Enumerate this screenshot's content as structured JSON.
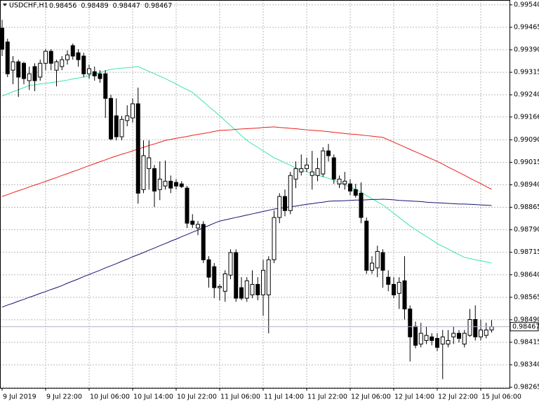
{
  "chart_data": {
    "type": "candlestick",
    "title": "USDCHF,H1",
    "categories": [
      "9 Jul 2019",
      null,
      null,
      null,
      null,
      null,
      null,
      null,
      "9 Jul 22:00",
      null,
      null,
      null,
      null,
      null,
      null,
      null,
      "10 Jul 06:00",
      null,
      null,
      null,
      null,
      null,
      null,
      null,
      "10 Jul 14:00",
      null,
      null,
      null,
      null,
      null,
      null,
      null,
      "10 Jul 22:00",
      null,
      null,
      null,
      null,
      null,
      null,
      null,
      "11 Jul 06:00",
      null,
      null,
      null,
      null,
      null,
      null,
      null,
      "11 Jul 14:00",
      null,
      null,
      null,
      null,
      null,
      null,
      null,
      "11 Jul 22:00",
      null,
      null,
      null,
      null,
      null,
      null,
      null,
      "12 Jul 06:00",
      null,
      null,
      null,
      null,
      null,
      null,
      null,
      "12 Jul 14:00",
      null,
      null,
      null,
      null,
      null,
      null,
      null,
      "12 Jul 22:00",
      null,
      null,
      null,
      null,
      null,
      null,
      null,
      "15 Jul 06:00",
      null,
      null
    ],
    "open": [
      0.99462,
      0.99416,
      0.99322,
      0.9935,
      0.99345,
      0.99287,
      0.99334,
      0.99299,
      0.99345,
      0.99385,
      0.99322,
      0.99334,
      0.99357,
      0.99404,
      0.9938,
      0.99369,
      0.9931,
      0.99317,
      0.9931,
      0.9931,
      0.99228,
      0.9917,
      0.991,
      0.99154,
      0.99163,
      0.9921,
      0.98924,
      0.98994,
      0.98994,
      0.98924,
      0.98936,
      0.98952,
      0.98948,
      0.98943,
      0.98929,
      0.98819,
      0.98796,
      0.98808,
      0.9869,
      0.98667,
      0.98597,
      0.98585,
      0.98639,
      0.98714,
      0.98597,
      0.98562,
      0.98573,
      0.98608,
      0.98573,
      0.98573,
      0.9869,
      0.98831,
      0.98901,
      0.98854,
      0.98959,
      0.98983,
      0.98994,
      0.98971,
      0.98971,
      0.98976,
      0.99053,
      0.9903,
      0.98943,
      0.98943,
      0.98943,
      0.98924,
      0.98912,
      0.98819,
      0.98655,
      0.98663,
      0.98714,
      0.98632,
      0.98608,
      0.98578,
      0.9862,
      0.98526,
      0.98468,
      0.98409,
      0.98421,
      0.98433,
      0.98428,
      0.98409,
      0.98409,
      0.98433,
      0.98445,
      0.98409,
      0.98438,
      0.98491,
      0.98433,
      0.98438,
      0.98456
    ],
    "high": [
      0.9949,
      0.99427,
      0.99369,
      0.99357,
      0.9935,
      0.99334,
      0.99345,
      0.99357,
      0.99392,
      0.99392,
      0.99357,
      0.99369,
      0.99388,
      0.99411,
      0.99392,
      0.9938,
      0.99341,
      0.99334,
      0.99322,
      0.99322,
      0.9924,
      0.99228,
      0.9917,
      0.99205,
      0.99228,
      0.99264,
      0.99088,
      0.99088,
      0.99006,
      0.99018,
      0.99021,
      0.98971,
      0.98959,
      0.98952,
      0.98936,
      0.98842,
      0.98819,
      0.98819,
      0.98702,
      0.98679,
      0.98608,
      0.98655,
      0.98725,
      0.98725,
      0.98632,
      0.98632,
      0.98655,
      0.98632,
      0.9869,
      0.98702,
      0.98854,
      0.98912,
      0.98924,
      0.98983,
      0.99018,
      0.99041,
      0.9903,
      0.99053,
      0.9903,
      0.99065,
      0.99076,
      0.99041,
      0.98971,
      0.98983,
      0.98959,
      0.98943,
      0.98948,
      0.98831,
      0.98702,
      0.98737,
      0.98725,
      0.98655,
      0.98632,
      0.98632,
      0.98702,
      0.98538,
      0.98484,
      0.9848,
      0.98468,
      0.98445,
      0.98445,
      0.98456,
      0.98456,
      0.98468,
      0.98456,
      0.98456,
      0.98526,
      0.98538,
      0.98491,
      0.9848,
      0.98489
    ],
    "low": [
      0.99369,
      0.99299,
      0.99275,
      0.99233,
      0.99275,
      0.99256,
      0.99252,
      0.99287,
      0.99322,
      0.99322,
      0.99268,
      0.99322,
      0.99341,
      0.99357,
      0.99334,
      0.99299,
      0.99294,
      0.99287,
      0.9928,
      0.99163,
      0.99088,
      0.99088,
      0.99088,
      0.99135,
      0.99147,
      0.98877,
      0.98912,
      0.98924,
      0.98866,
      0.98889,
      0.98924,
      0.98912,
      0.98924,
      0.98929,
      0.98796,
      0.98796,
      0.98772,
      0.98679,
      0.98597,
      0.98562,
      0.98555,
      0.9855,
      0.98625,
      0.9855,
      0.98555,
      0.9855,
      0.98562,
      0.98555,
      0.98503,
      0.98445,
      0.98679,
      0.98812,
      0.98835,
      0.98842,
      0.98929,
      0.98971,
      0.98983,
      0.98924,
      0.98952,
      0.98966,
      0.99018,
      0.98943,
      0.98929,
      0.98924,
      0.98905,
      0.98897,
      0.98812,
      0.98643,
      0.98643,
      0.98632,
      0.98597,
      0.98585,
      0.98562,
      0.98526,
      0.98491,
      0.98351,
      0.98395,
      0.98398,
      0.98409,
      0.98405,
      0.98386,
      0.98292,
      0.98398,
      0.98409,
      0.98414,
      0.98398,
      0.98433,
      0.98421,
      0.98421,
      0.98428,
      0.98447
    ],
    "close": [
      0.99392,
      0.9931,
      0.9935,
      0.99299,
      0.99294,
      0.9931,
      0.99287,
      0.99345,
      0.99385,
      0.99345,
      0.9935,
      0.99357,
      0.99373,
      0.99369,
      0.99357,
      0.9931,
      0.99327,
      0.99303,
      0.99294,
      0.99228,
      0.99093,
      0.991,
      0.99158,
      0.9917,
      0.9921,
      0.98912,
      0.99037,
      0.9903,
      0.98919,
      0.98959,
      0.98952,
      0.98929,
      0.98936,
      0.98934,
      0.98812,
      0.98808,
      0.98808,
      0.9869,
      0.98632,
      0.98597,
      0.98601,
      0.98643,
      0.98714,
      0.98562,
      0.98562,
      0.9862,
      0.98608,
      0.98573,
      0.98655,
      0.9869,
      0.98831,
      0.98901,
      0.98854,
      0.98971,
      0.98994,
      0.98994,
      0.99006,
      0.98983,
      0.98994,
      0.99053,
      0.99037,
      0.98959,
      0.98959,
      0.98952,
      0.98919,
      0.98905,
      0.98831,
      0.98655,
      0.98679,
      0.98718,
      0.98655,
      0.98608,
      0.98573,
      0.98615,
      0.98526,
      0.98433,
      0.98405,
      0.98445,
      0.98438,
      0.98421,
      0.98398,
      0.98433,
      0.98421,
      0.98445,
      0.98428,
      0.98445,
      0.98491,
      0.98433,
      0.98456,
      0.98456,
      0.98467
    ],
    "up_color": "#ffffff",
    "down_color": "#000000",
    "outline_color": "#000000",
    "overlays": [
      {
        "color": "#3ee6a6",
        "values": [
          0.99236,
          0.99243,
          0.9925,
          0.99257,
          0.99264,
          0.99271,
          0.99273,
          0.99276,
          0.99278,
          0.99281,
          0.99283,
          0.99286,
          0.99289,
          0.99293,
          0.99296,
          0.99299,
          0.99304,
          0.99309,
          0.99315,
          0.9932,
          0.99325,
          0.99327,
          0.99329,
          0.9933,
          0.99332,
          0.99334,
          0.99326,
          0.99318,
          0.9931,
          0.99302,
          0.99294,
          0.99285,
          0.99276,
          0.99266,
          0.99257,
          0.99248,
          0.99232,
          0.99217,
          0.99201,
          0.99186,
          0.9917,
          0.99154,
          0.99137,
          0.99121,
          0.99104,
          0.99088,
          0.99076,
          0.99065,
          0.99053,
          0.99042,
          0.9903,
          0.99022,
          0.99013,
          0.99005,
          0.98996,
          0.98988,
          0.98983,
          0.98978,
          0.98972,
          0.98967,
          0.98962,
          0.98955,
          0.98947,
          0.9894,
          0.98932,
          0.98925,
          0.98915,
          0.98904,
          0.98894,
          0.98883,
          0.98873,
          0.98859,
          0.98845,
          0.98831,
          0.98817,
          0.98803,
          0.98791,
          0.98779,
          0.98768,
          0.98756,
          0.98744,
          0.98735,
          0.98726,
          0.98716,
          0.98707,
          0.98698,
          0.98694,
          0.9869,
          0.98687,
          0.98683,
          0.98679
        ]
      },
      {
        "color": "#e8201c",
        "values": [
          0.98901,
          0.98907,
          0.98914,
          0.9892,
          0.98926,
          0.98933,
          0.98939,
          0.98945,
          0.98951,
          0.98958,
          0.98964,
          0.98971,
          0.98977,
          0.98984,
          0.9899,
          0.98997,
          0.99004,
          0.9901,
          0.99017,
          0.99023,
          0.9903,
          0.99036,
          0.99042,
          0.99047,
          0.99053,
          0.99059,
          0.99065,
          0.99071,
          0.99076,
          0.99082,
          0.99088,
          0.99091,
          0.99095,
          0.99098,
          0.99101,
          0.99105,
          0.99108,
          0.99111,
          0.99114,
          0.99118,
          0.99121,
          0.99122,
          0.99123,
          0.99125,
          0.99126,
          0.99127,
          0.99128,
          0.99129,
          0.99131,
          0.99132,
          0.99133,
          0.99131,
          0.9913,
          0.99128,
          0.99127,
          0.99125,
          0.99123,
          0.99122,
          0.9912,
          0.99119,
          0.99117,
          0.99115,
          0.99113,
          0.99111,
          0.99109,
          0.99108,
          0.99106,
          0.99104,
          0.99102,
          0.991,
          0.99098,
          0.9909,
          0.99082,
          0.99074,
          0.99066,
          0.99058,
          0.9905,
          0.99042,
          0.99034,
          0.99026,
          0.99018,
          0.99009,
          0.98999,
          0.9899,
          0.98981,
          0.98972,
          0.98962,
          0.98953,
          0.98944,
          0.98934,
          0.98925
        ]
      },
      {
        "color": "#141470",
        "values": [
          0.98532,
          0.98539,
          0.98545,
          0.98552,
          0.98558,
          0.98565,
          0.98571,
          0.98578,
          0.98584,
          0.98591,
          0.98597,
          0.98604,
          0.98612,
          0.98619,
          0.98626,
          0.98634,
          0.98641,
          0.98648,
          0.98655,
          0.98663,
          0.9867,
          0.98677,
          0.98685,
          0.98692,
          0.987,
          0.98707,
          0.98714,
          0.98722,
          0.98729,
          0.98737,
          0.98744,
          0.98752,
          0.98759,
          0.98767,
          0.98774,
          0.98782,
          0.98789,
          0.98797,
          0.98804,
          0.98812,
          0.98819,
          0.98823,
          0.98827,
          0.98831,
          0.98835,
          0.98839,
          0.98843,
          0.98847,
          0.98851,
          0.98855,
          0.98859,
          0.98862,
          0.98864,
          0.98867,
          0.98869,
          0.98872,
          0.98875,
          0.98877,
          0.9888,
          0.98882,
          0.98885,
          0.98886,
          0.98886,
          0.98887,
          0.98888,
          0.98889,
          0.98889,
          0.9889,
          0.98891,
          0.98891,
          0.98892,
          0.98891,
          0.9889,
          0.98888,
          0.98887,
          0.98886,
          0.98885,
          0.98884,
          0.98882,
          0.98881,
          0.9888,
          0.98879,
          0.98878,
          0.98877,
          0.98876,
          0.98876,
          0.98875,
          0.98874,
          0.98873,
          0.98872,
          0.98871
        ]
      }
    ],
    "ylim": [
      0.98263,
      0.99556
    ],
    "yticks": [
      {
        "value": 0.9954,
        "label": "0.99540"
      },
      0.99465,
      {
        "value": 0.9939,
        "label": "0.99390"
      },
      0.99315,
      {
        "value": 0.9924,
        "label": "0.99240"
      },
      0.99166,
      {
        "value": 0.9909,
        "label": "0.99090"
      },
      0.99015,
      {
        "value": 0.9894,
        "label": "0.98940"
      },
      0.98865,
      {
        "value": 0.9879,
        "label": "0.98790"
      },
      0.98715,
      {
        "value": 0.9864,
        "label": "0.98640"
      },
      0.98565,
      {
        "value": 0.9849,
        "label": "0.98490"
      },
      0.98415,
      {
        "value": 0.9834,
        "label": "0.98340"
      },
      0.98265
    ],
    "grid": true,
    "price_line_color": "#a9b4bd"
  }
}
